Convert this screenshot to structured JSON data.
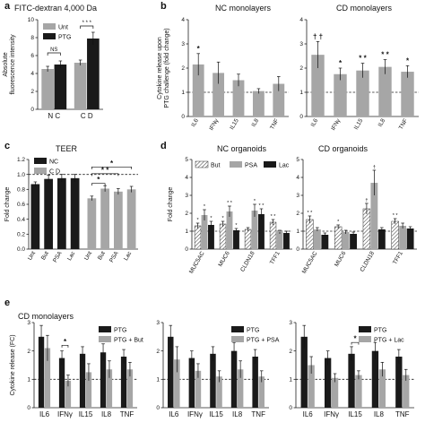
{
  "colors": {
    "black": "#1a1a1a",
    "gray": "#a6a6a6",
    "hatch": "#ffffff"
  },
  "charts": [
    {
      "letter": "a",
      "title": "FITC-dextran 4,000 Da",
      "type": "bar",
      "ylabel": "Absolute\nfluorescence intensity",
      "xlabel": "",
      "ylim": [
        0,
        10
      ],
      "yticks": [
        0,
        2,
        4,
        6,
        8,
        10
      ],
      "ref": null,
      "categories": [
        "N C",
        "C D"
      ],
      "series": [
        {
          "name": "Unt",
          "color": "gray",
          "values": [
            4.5,
            5.2
          ],
          "errors": [
            0.3,
            0.3
          ]
        },
        {
          "name": "PTG",
          "color": "black",
          "values": [
            5.0,
            7.9
          ],
          "errors": [
            0.4,
            0.7
          ]
        }
      ],
      "legend": {
        "position": "top-left",
        "entries": [
          "Unt",
          "PTG"
        ]
      },
      "annotations": [
        {
          "text": "NS",
          "between": [
            0,
            0
          ],
          "y": 6.3
        },
        {
          "text": "* * *",
          "between": [
            1,
            1
          ],
          "y": 9.3
        }
      ]
    },
    {
      "letter": "b",
      "title": "NC monolayers",
      "type": "bar",
      "ylabel": "Cytokine release upon\nPTG challenge (fold change)",
      "ylim": [
        0,
        4
      ],
      "yticks": [
        0,
        1,
        2,
        3,
        4
      ],
      "ref": 1,
      "categories": [
        "IL6",
        "IFNγ",
        "IL15",
        "IL8",
        "TNF"
      ],
      "series": [
        {
          "name": "",
          "color": "gray",
          "values": [
            2.15,
            1.8,
            1.5,
            1.05,
            1.35
          ],
          "errors": [
            0.45,
            0.45,
            0.25,
            0.1,
            0.3
          ]
        }
      ],
      "labels": [
        "*",
        "",
        "",
        "",
        ""
      ]
    },
    {
      "letter": "",
      "title": "CD monolayers",
      "type": "bar",
      "ylim": [
        0,
        4
      ],
      "yticks": [
        0,
        1,
        2,
        3,
        4
      ],
      "ref": 1,
      "categories": [
        "IL6",
        "IFNγ",
        "IL15",
        "IL8",
        "TNF"
      ],
      "series": [
        {
          "name": "",
          "color": "gray",
          "values": [
            2.55,
            1.75,
            1.9,
            2.05,
            1.85
          ],
          "errors": [
            0.55,
            0.25,
            0.3,
            0.3,
            0.25
          ]
        }
      ],
      "labels": [
        "† †",
        "*",
        "* *",
        "* *",
        "*"
      ]
    },
    {
      "letter": "c",
      "title": "TEER",
      "type": "bar",
      "ylabel": "Fold change",
      "ylim": [
        0,
        1.2
      ],
      "yticks": [
        0,
        0.2,
        0.4,
        0.6,
        0.8,
        1.0,
        1.2
      ],
      "ref": 1.0,
      "categories": [
        "Unt",
        "But",
        "PSA",
        "Lac",
        "Unt",
        "But",
        "PSA",
        "Lac"
      ],
      "series": [
        {
          "name": "",
          "values": [
            0.87,
            0.94,
            0.95,
            0.95,
            0.68,
            0.81,
            0.77,
            0.8
          ],
          "errors": [
            0.03,
            0.05,
            0.05,
            0.05,
            0.03,
            0.04,
            0.04,
            0.04
          ],
          "colorKeys": [
            "black",
            "black",
            "black",
            "black",
            "gray",
            "gray",
            "gray",
            "gray"
          ]
        }
      ],
      "legend": {
        "position": "top-left",
        "entries": [
          "NC",
          "C D"
        ]
      },
      "brackets": [
        {
          "from": 4,
          "to": 5,
          "y": 0.88,
          "text": "*"
        },
        {
          "from": 4,
          "to": 6,
          "y": 1.01,
          "text": "* *"
        },
        {
          "from": 4,
          "to": 7,
          "y": 1.1,
          "text": "*"
        }
      ]
    },
    {
      "letter": "d",
      "title": "NC organoids",
      "type": "bar",
      "ylabel": "Fold change",
      "ylim": [
        0,
        5
      ],
      "yticks": [
        0,
        1,
        2,
        3,
        4,
        5
      ],
      "ref": 1,
      "categories": [
        "MUC5AC",
        "MUC6",
        "CLDN18",
        "TFF1"
      ],
      "series": [
        {
          "name": "But",
          "color": "hatch",
          "values": [
            1.3,
            1.4,
            1.1,
            1.5
          ],
          "errors": [
            0.15,
            0.15,
            0.1,
            0.15
          ]
        },
        {
          "name": "PSA",
          "color": "gray",
          "values": [
            1.9,
            2.1,
            2.15,
            0.95
          ],
          "errors": [
            0.3,
            0.3,
            0.35,
            0.1
          ]
        },
        {
          "name": "Lac",
          "color": "black",
          "values": [
            1.35,
            1.05,
            1.95,
            0.9
          ],
          "errors": [
            0.2,
            0.1,
            0.3,
            0.1
          ]
        }
      ],
      "legend": {
        "position": "top",
        "entries": [
          "But",
          "PSA",
          "Lac"
        ]
      },
      "markLabels": [
        [
          "*",
          "*",
          "*"
        ],
        [
          "*",
          "* *",
          "*"
        ],
        [
          "",
          "*",
          "* *"
        ],
        [
          "* *",
          "",
          ""
        ]
      ]
    },
    {
      "letter": "",
      "title": "CD organoids",
      "type": "bar",
      "ylim": [
        0,
        5
      ],
      "yticks": [
        0,
        1,
        2,
        3,
        4,
        5
      ],
      "ref": 1,
      "categories": [
        "MUC5AC",
        "MUC6",
        "CLDN18",
        "TFF1"
      ],
      "series": [
        {
          "name": "But",
          "color": "hatch",
          "values": [
            1.65,
            1.25,
            2.25,
            1.55
          ],
          "errors": [
            0.2,
            0.1,
            0.3,
            0.15
          ]
        },
        {
          "name": "PSA",
          "color": "gray",
          "values": [
            1.1,
            0.95,
            3.7,
            1.3
          ],
          "errors": [
            0.1,
            0.1,
            0.7,
            0.15
          ]
        },
        {
          "name": "Lac",
          "color": "black",
          "values": [
            0.8,
            0.85,
            1.1,
            1.15
          ],
          "errors": [
            0.1,
            0.1,
            0.1,
            0.1
          ]
        }
      ],
      "markLabels": [
        [
          "* *",
          "",
          ""
        ],
        [
          "*",
          "",
          ""
        ],
        [
          "†",
          "†",
          ""
        ],
        [
          "* *",
          "",
          ""
        ]
      ]
    },
    {
      "letter": "e",
      "title": "CD monolayers",
      "type": "bar",
      "ylabel": "Cytokine release (FC)",
      "ylim": [
        0,
        3
      ],
      "yticks": [
        0,
        1,
        2,
        3
      ],
      "ref": 1,
      "categories": [
        "IL6",
        "IFNγ",
        "IL15",
        "IL8",
        "TNF"
      ],
      "series": [
        {
          "name": "PTG",
          "color": "black",
          "values": [
            2.5,
            1.75,
            1.9,
            1.95,
            1.8
          ],
          "errors": [
            0.4,
            0.25,
            0.25,
            0.3,
            0.25
          ]
        },
        {
          "name": "PTG + But",
          "color": "gray",
          "values": [
            2.1,
            0.95,
            1.25,
            1.35,
            1.35
          ],
          "errors": [
            0.45,
            0.2,
            0.3,
            0.3,
            0.25
          ]
        }
      ],
      "legend": {
        "position": "top-right",
        "entries": [
          "PTG",
          "PTG + But"
        ]
      },
      "brackets": [
        {
          "from": 1,
          "to": 1,
          "y": 2.2,
          "text": "*"
        }
      ]
    },
    {
      "letter": "",
      "title": "",
      "type": "bar",
      "ylim": [
        0,
        3
      ],
      "yticks": [
        0,
        1,
        2,
        3
      ],
      "ref": 1,
      "categories": [
        "IL6",
        "IFNγ",
        "IL15",
        "IL8",
        "TNF"
      ],
      "series": [
        {
          "name": "PTG",
          "color": "black",
          "values": [
            2.5,
            1.75,
            1.9,
            2.0,
            1.8
          ],
          "errors": [
            0.4,
            0.25,
            0.25,
            0.3,
            0.25
          ]
        },
        {
          "name": "PTG + PSA",
          "color": "gray",
          "values": [
            1.7,
            1.3,
            1.1,
            1.35,
            1.1
          ],
          "errors": [
            0.45,
            0.25,
            0.2,
            0.3,
            0.2
          ]
        }
      ],
      "legend": {
        "position": "top-right",
        "entries": [
          "PTG",
          "PTG + PSA"
        ]
      }
    },
    {
      "letter": "",
      "title": "",
      "type": "bar",
      "ylim": [
        0,
        3
      ],
      "yticks": [
        0,
        1,
        2,
        3
      ],
      "ref": 1,
      "categories": [
        "IL6",
        "IFNγ",
        "IL15",
        "IL8",
        "TNF"
      ],
      "series": [
        {
          "name": "PTG",
          "color": "black",
          "values": [
            2.5,
            1.75,
            1.9,
            2.0,
            1.8
          ],
          "errors": [
            0.4,
            0.25,
            0.25,
            0.3,
            0.25
          ]
        },
        {
          "name": "PTG + Lac",
          "color": "gray",
          "values": [
            1.5,
            1.05,
            1.15,
            1.35,
            1.15
          ],
          "errors": [
            0.3,
            0.15,
            0.15,
            0.25,
            0.2
          ]
        }
      ],
      "legend": {
        "position": "top-right",
        "entries": [
          "PTG",
          "PTG + Lac"
        ]
      },
      "brackets": [
        {
          "from": 2,
          "to": 2,
          "y": 2.3,
          "text": "*"
        }
      ]
    }
  ]
}
